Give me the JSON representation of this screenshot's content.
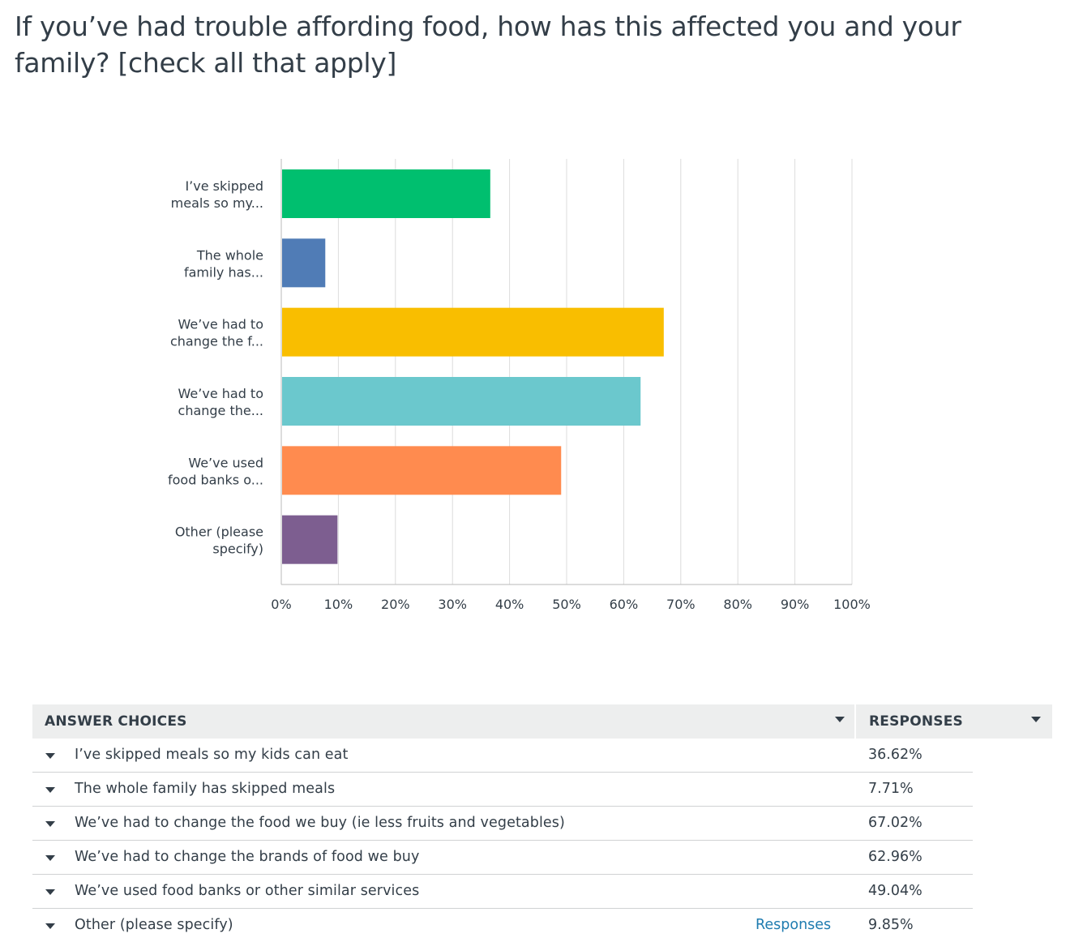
{
  "question": {
    "title": "If you’ve had trouble affording food, how has this affected you and your family? [check all that apply]"
  },
  "chart_data": {
    "type": "bar",
    "orientation": "horizontal",
    "categories": [
      [
        "I’ve skipped",
        "meals so my..."
      ],
      [
        "The whole",
        "family has..."
      ],
      [
        "We’ve had to",
        "change the f..."
      ],
      [
        "We’ve had to",
        "change the..."
      ],
      [
        "We’ve used",
        "food banks o..."
      ],
      [
        "Other (please",
        "specify)"
      ]
    ],
    "values": [
      36.62,
      7.71,
      67.02,
      62.96,
      49.04,
      9.85
    ],
    "colors": [
      "#00bf6f",
      "#507cb6",
      "#f9be00",
      "#6bc8cd",
      "#ff8b4f",
      "#7d5e90"
    ],
    "xlim": [
      0,
      100
    ],
    "xticks": [
      "0%",
      "10%",
      "20%",
      "30%",
      "40%",
      "50%",
      "60%",
      "70%",
      "80%",
      "90%",
      "100%"
    ],
    "grid": true
  },
  "table": {
    "headers": {
      "choices": "ANSWER CHOICES",
      "responses": "RESPONSES"
    },
    "rows": [
      {
        "label": "I’ve skipped meals so my kids can eat",
        "value": "36.62%"
      },
      {
        "label": "The whole family has skipped meals",
        "value": "7.71%"
      },
      {
        "label": "We’ve had to change the food we buy (ie less fruits and vegetables)",
        "value": "67.02%"
      },
      {
        "label": "We’ve had to change the brands of food we buy",
        "value": "62.96%"
      },
      {
        "label": "We’ve used food banks or other similar services",
        "value": "49.04%"
      },
      {
        "label": "Other (please specify)",
        "value": "9.85%",
        "link": "Responses"
      }
    ]
  }
}
